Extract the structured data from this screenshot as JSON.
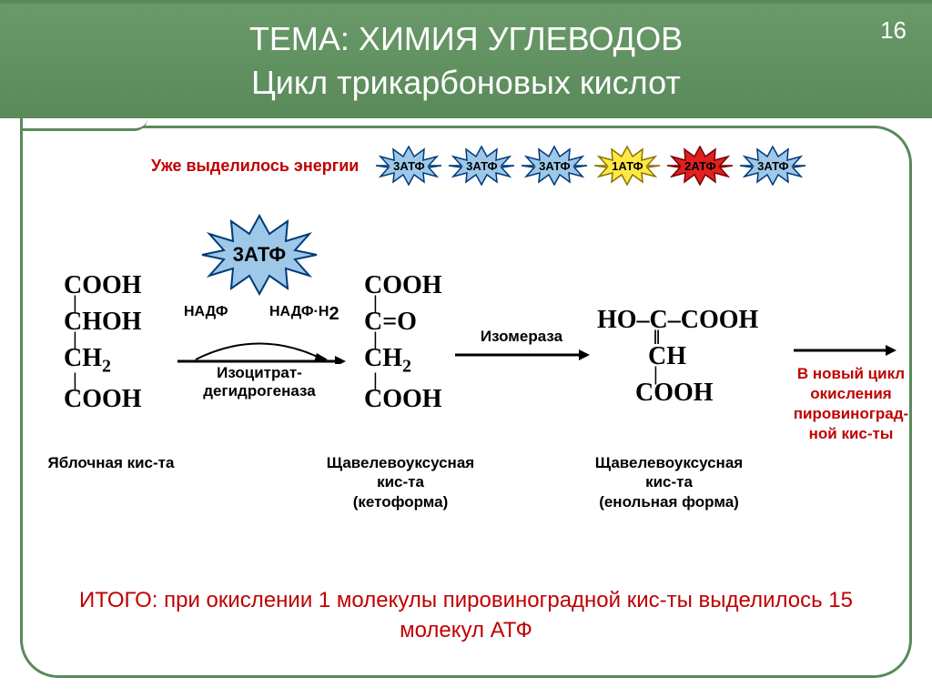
{
  "page_number": "16",
  "header": {
    "title_line1": "ТЕМА: ХИМИЯ УГЛЕВОДОВ",
    "title_line2": "Цикл трикарбоновых кислот",
    "bg_gradient_top": "#6a9a6a",
    "bg_gradient_bottom": "#5a8a5a",
    "text_color": "#ffffff"
  },
  "energy_row": {
    "label": "Уже выделилось энергии",
    "label_color": "#c00000",
    "bursts": [
      {
        "text": "3АТФ",
        "fill": "#9ec8e8",
        "stroke": "#003a7a"
      },
      {
        "text": "3АТФ",
        "fill": "#9ec8e8",
        "stroke": "#003a7a"
      },
      {
        "text": "3АТФ",
        "fill": "#9ec8e8",
        "stroke": "#003a7a"
      },
      {
        "text": "1АТФ",
        "fill": "#ffe843",
        "stroke": "#8a7400"
      },
      {
        "text": "2АТФ",
        "fill": "#e02020",
        "stroke": "#7a0000"
      },
      {
        "text": "3АТФ",
        "fill": "#9ec8e8",
        "stroke": "#003a7a"
      }
    ]
  },
  "big_burst": {
    "text": "3АТФ",
    "fill": "#9ec8e8",
    "stroke": "#003a7a"
  },
  "molecules": {
    "m1": {
      "lines": [
        "COOH",
        "|",
        "CHOH",
        "|",
        "CH₂",
        "|",
        "COOH"
      ],
      "label": "Яблочная кис-та"
    },
    "m2": {
      "lines": [
        "COOH",
        "|",
        "C=O",
        "|",
        "CH₂",
        "|",
        "COOH"
      ],
      "label": "Щавелевоуксусная\nкис-та\n(кетоформа)"
    },
    "m3": {
      "lines_top": "HO–C–COOH",
      "lines_mid_bond": "‖",
      "lines_mid": "CH",
      "lines_bot_bond": "|",
      "lines_bot": "COOH",
      "label": "Щавелевоуксусная\nкис-та\n(енольная форма)"
    }
  },
  "reactions": {
    "r1": {
      "cofactor_left": "НАДФ",
      "cofactor_right": "НАДФ·H₂",
      "enzyme": "Изоцитрат-\nдегидрогеназа",
      "arrow_color": "#000000"
    },
    "r2": {
      "above": "Изомераза",
      "arrow_color": "#000000"
    },
    "r3": {
      "arrow_color": "#000000",
      "endnote": "В новый цикл\nокисления\nпировиноград-\nной кис-ты",
      "endnote_color": "#c00000"
    }
  },
  "summary": {
    "text": "ИТОГО: при окислении 1 молекулы  пировиноградной кис-ты выделилось 15 молекул АТФ",
    "color": "#c00000"
  },
  "frame": {
    "border_color": "#5a8a5a",
    "border_width": 3,
    "radius": 42
  }
}
